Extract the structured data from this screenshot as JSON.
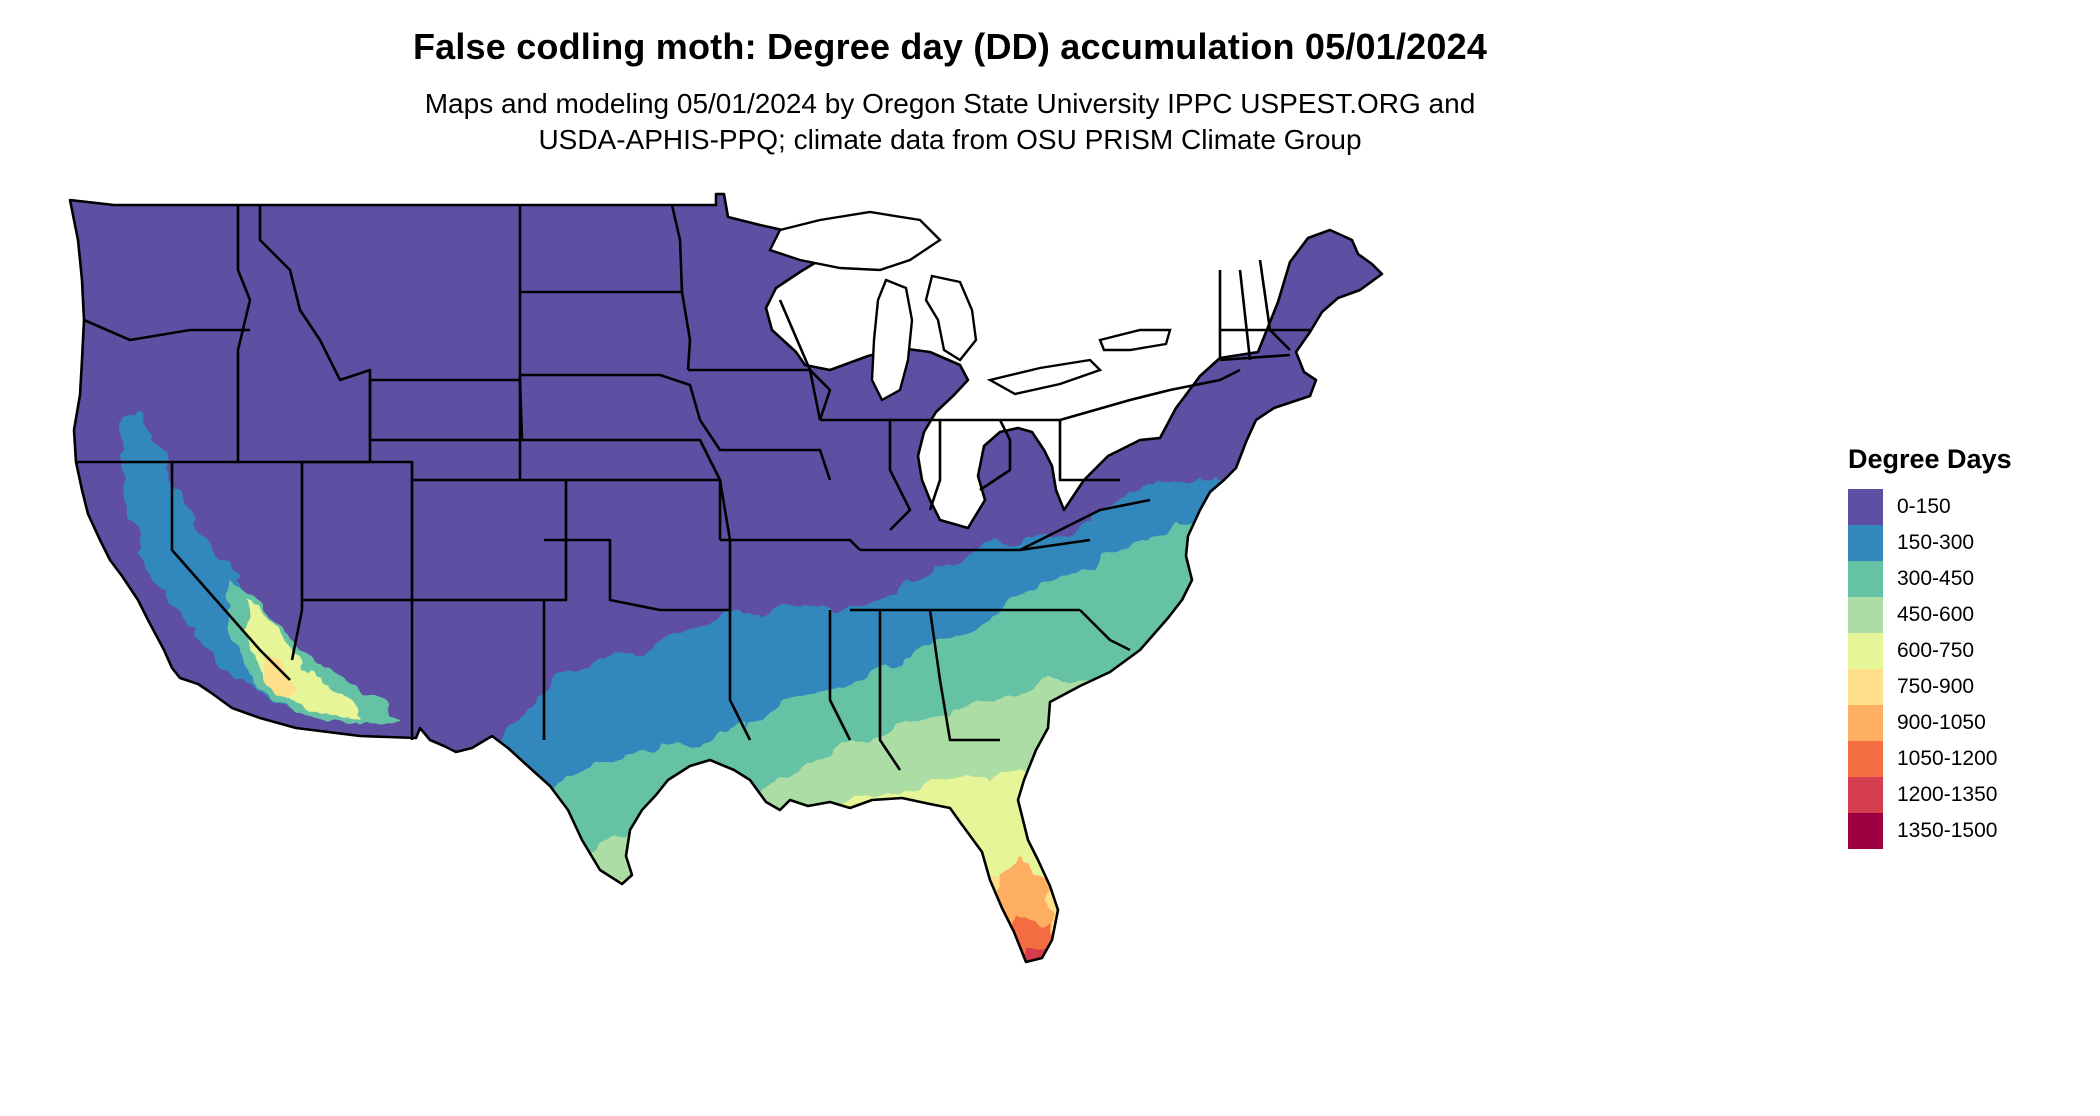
{
  "title": "False codling moth: Degree day (DD) accumulation 05/01/2024",
  "subtitle": [
    "Maps and modeling 05/01/2024 by Oregon State University IPPC USPEST.ORG and",
    "USDA-APHIS-PPQ; climate data from OSU PRISM Climate Group"
  ],
  "legend": {
    "title": "Degree Days",
    "items": [
      {
        "label": "0-150",
        "color": "#5E4FA2"
      },
      {
        "label": "150-300",
        "color": "#3288BD"
      },
      {
        "label": "300-450",
        "color": "#66C2A5"
      },
      {
        "label": "450-600",
        "color": "#ABDDA4"
      },
      {
        "label": "600-750",
        "color": "#E6F598"
      },
      {
        "label": "750-900",
        "color": "#FEE08B"
      },
      {
        "label": "900-1050",
        "color": "#FDAE61"
      },
      {
        "label": "1050-1200",
        "color": "#F46D43"
      },
      {
        "label": "1200-1350",
        "color": "#D53E4F"
      },
      {
        "label": "1350-1500",
        "color": "#9E0142"
      }
    ]
  },
  "map": {
    "region": "Contiguous United States",
    "boundary_color": "#000000"
  }
}
